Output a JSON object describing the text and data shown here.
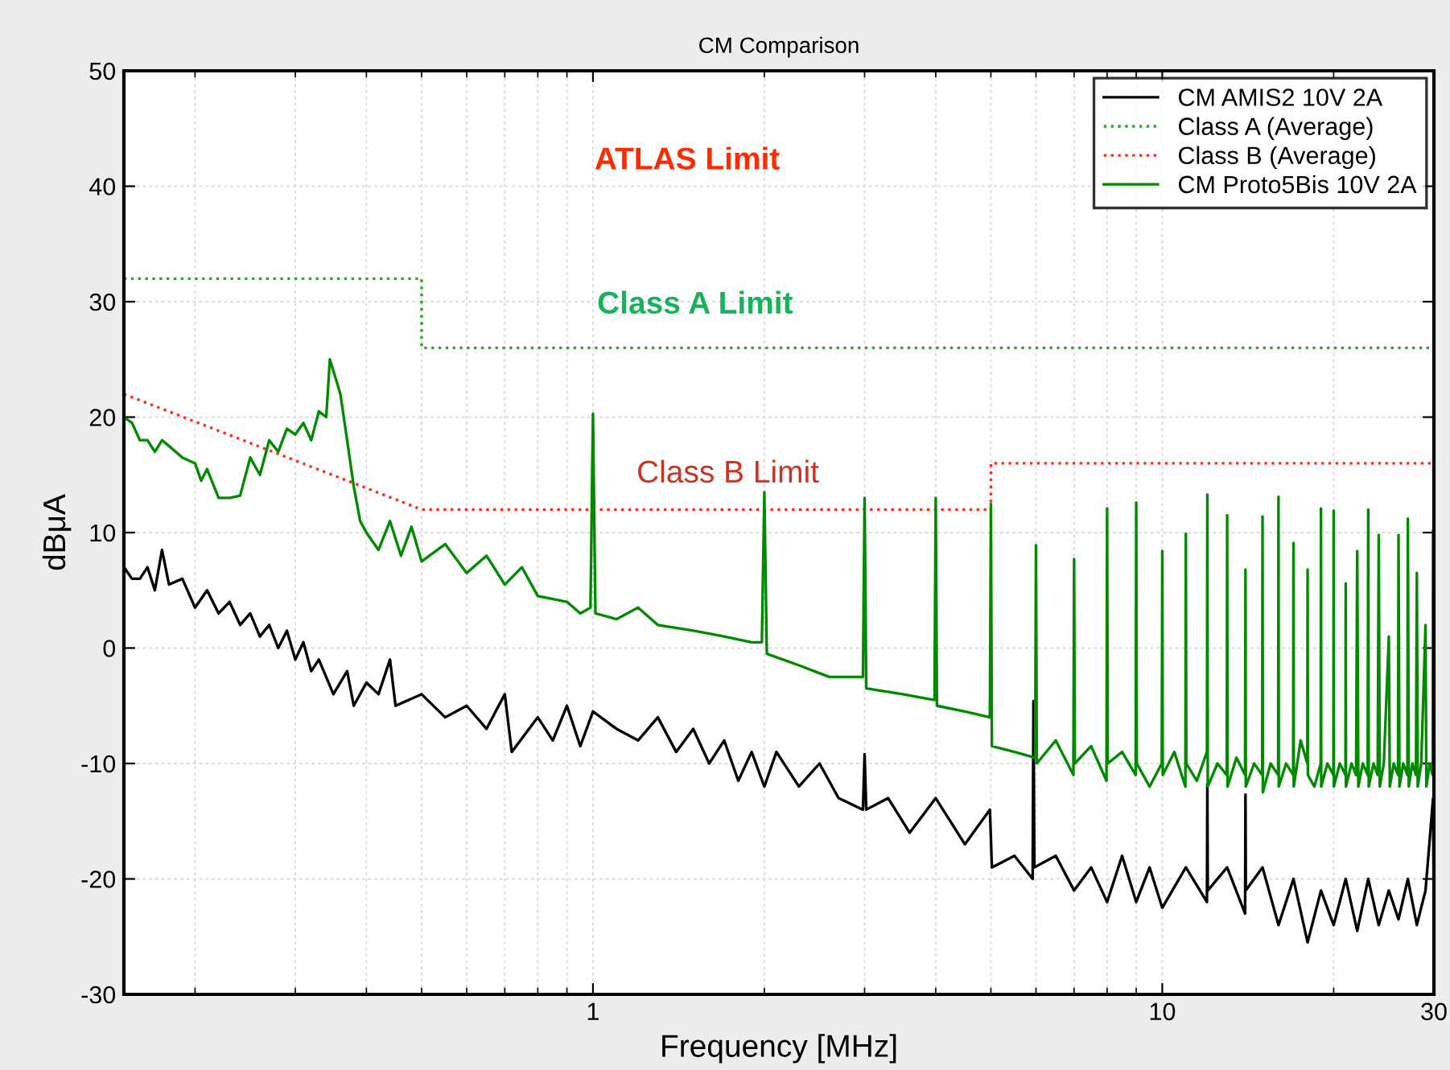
{
  "chart_data": {
    "type": "line",
    "title": "CM Comparison",
    "xlabel": "Frequency [MHz]",
    "ylabel": "dBμA",
    "log": "x",
    "xlim": [
      0.15,
      30
    ],
    "xticks": [
      1,
      10,
      30
    ],
    "ylim": [
      -30,
      50
    ],
    "yticks": [
      -30,
      -20,
      -10,
      0,
      10,
      20,
      30,
      40,
      50
    ],
    "grid": true,
    "legend": "top right",
    "annotations": [
      "ATLAS Limit",
      "Class A Limit",
      "Class B Limit"
    ],
    "series": [
      {
        "name": "CM AMIS2 10V 2A",
        "color": "#000000",
        "line_style": "solid",
        "x": [
          0.15,
          0.155,
          0.16,
          0.165,
          0.17,
          0.175,
          0.18,
          0.19,
          0.2,
          0.21,
          0.22,
          0.23,
          0.24,
          0.25,
          0.26,
          0.27,
          0.28,
          0.29,
          0.3,
          0.31,
          0.32,
          0.33,
          0.35,
          0.37,
          0.38,
          0.4,
          0.42,
          0.44,
          0.45,
          0.5,
          0.55,
          0.6,
          0.65,
          0.7,
          0.72,
          0.8,
          0.85,
          0.9,
          0.95,
          1.0,
          1.1,
          1.2,
          1.3,
          1.4,
          1.5,
          1.6,
          1.7,
          1.8,
          1.9,
          2.0,
          2.1,
          2.3,
          2.5,
          2.7,
          2.98,
          3.0,
          3.02,
          3.3,
          3.6,
          4.0,
          4.5,
          4.98,
          5.02,
          5.5,
          5.92,
          5.94,
          5.96,
          6.5,
          7.0,
          7.5,
          8.0,
          8.5,
          9.0,
          9.5,
          10,
          11,
          11.98,
          12.0,
          12.02,
          13,
          13.98,
          14.0,
          14.02,
          15,
          16,
          17,
          18,
          19,
          20,
          21,
          22,
          23,
          24,
          25,
          26,
          27,
          28,
          29,
          29.9,
          30
        ],
        "values": [
          7,
          6,
          6,
          7,
          5,
          8.5,
          5.5,
          6,
          3.5,
          5,
          3,
          4,
          2,
          3,
          1,
          2,
          0,
          1.5,
          -1,
          0.5,
          -2,
          -1,
          -4,
          -2,
          -5,
          -3,
          -4,
          -1,
          -5,
          -4,
          -6,
          -5,
          -7,
          -4,
          -9,
          -6,
          -8,
          -5,
          -8.5,
          -5.5,
          -7,
          -8,
          -6,
          -9,
          -7,
          -10,
          -8,
          -11.5,
          -9,
          -12,
          -9,
          -12,
          -10,
          -13,
          -14,
          -9.2,
          -14,
          -13,
          -16,
          -13,
          -17,
          -14,
          -19,
          -18,
          -20,
          -4.6,
          -19,
          -18,
          -21,
          -19,
          -22,
          -18,
          -22,
          -19,
          -22.5,
          -19,
          -22,
          -11.8,
          -21,
          -19,
          -23,
          -12.7,
          -21,
          -19,
          -24,
          -20,
          -25.5,
          -21,
          -24,
          -20,
          -24.5,
          -20,
          -24,
          -21,
          -23.5,
          -20,
          -24,
          -21,
          -13,
          -23
        ]
      },
      {
        "name": "Class A (Average)",
        "color": "#22aa22",
        "line_style": "dotted",
        "x": [
          0.15,
          0.5,
          0.5,
          30
        ],
        "values": [
          32,
          32,
          26,
          26
        ]
      },
      {
        "name": "Class B (Average)",
        "color": "#ff2a1a",
        "line_style": "dotted",
        "x": [
          0.15,
          0.5,
          5,
          5,
          30
        ],
        "values": [
          22,
          12,
          12,
          16,
          16
        ]
      },
      {
        "name": "CM Proto5Bis 10V 2A",
        "color": "#008a00",
        "line_style": "solid",
        "x": [
          0.15,
          0.155,
          0.16,
          0.165,
          0.17,
          0.175,
          0.18,
          0.19,
          0.2,
          0.205,
          0.21,
          0.22,
          0.23,
          0.24,
          0.25,
          0.26,
          0.27,
          0.28,
          0.29,
          0.3,
          0.31,
          0.32,
          0.33,
          0.34,
          0.345,
          0.35,
          0.36,
          0.37,
          0.38,
          0.39,
          0.4,
          0.42,
          0.44,
          0.46,
          0.48,
          0.5,
          0.55,
          0.6,
          0.65,
          0.7,
          0.75,
          0.8,
          0.9,
          0.95,
          0.99,
          1.0,
          1.01,
          1.1,
          1.2,
          1.3,
          1.5,
          1.7,
          1.9,
          1.98,
          2.0,
          2.02,
          2.3,
          2.6,
          2.98,
          3.0,
          3.02,
          3.5,
          3.98,
          4.0,
          4.02,
          4.5,
          4.98,
          5.0,
          5.02,
          5.5,
          5.98,
          6.0,
          6.02,
          6.5,
          6.98,
          7.0,
          7.02,
          7.5,
          7.98,
          8.0,
          8.02,
          8.5,
          8.98,
          9.0,
          9.02,
          9.5,
          9.98,
          10.0,
          10.02,
          10.5,
          10.98,
          11.0,
          11.02,
          11.5,
          11.98,
          12.0,
          12.02,
          12.5,
          12.98,
          13.0,
          13.02,
          13.5,
          13.98,
          14.0,
          14.02,
          14.5,
          14.98,
          15.0,
          15.02,
          15.5,
          15.98,
          16.0,
          16.02,
          16.5,
          16.98,
          17.0,
          17.02,
          17.5,
          17.98,
          18.0,
          18.02,
          18.5,
          18.98,
          19.0,
          19.02,
          19.5,
          19.98,
          20.0,
          20.02,
          20.5,
          20.98,
          21.0,
          21.02,
          21.5,
          21.9,
          22.0,
          22.1,
          22.5,
          22.95,
          23.0,
          23.05,
          23.5,
          23.9,
          24.0,
          24.1,
          24.5,
          25.0,
          25.1,
          25.5,
          25.95,
          26.0,
          26.1,
          26.5,
          26.95,
          27.0,
          27.1,
          27.5,
          27.9,
          28.0,
          28.1,
          28.5,
          29.0,
          29.1,
          29.5,
          29.85,
          29.9,
          30
        ],
        "values": [
          20,
          19.5,
          18,
          18,
          17,
          18,
          17.5,
          16.5,
          16,
          14.5,
          15.5,
          13,
          13,
          13.2,
          16.5,
          15,
          18,
          17,
          19,
          18.5,
          19.5,
          18,
          20.5,
          20,
          25,
          24,
          22,
          18,
          14,
          11,
          10,
          8.5,
          11,
          8,
          10.5,
          7.5,
          9,
          6.5,
          8,
          5.5,
          7,
          4.5,
          4,
          3,
          3.5,
          20.3,
          3,
          2.5,
          3.5,
          2,
          1.5,
          1,
          0.5,
          0.5,
          13.5,
          -0.5,
          -1.5,
          -2.5,
          -2.5,
          13,
          -3.5,
          -4,
          -4.5,
          13,
          -5,
          -5.5,
          -6,
          12.5,
          -8.5,
          -9,
          -9.5,
          8.9,
          -10,
          -8,
          -11,
          7.7,
          -10,
          -8.5,
          -11.5,
          12.1,
          -10,
          -9,
          -11,
          12.6,
          -10,
          -12,
          -10,
          8.4,
          -11,
          -9,
          -12,
          9.9,
          -10,
          -11.5,
          -9,
          13.3,
          -12,
          -10,
          -11,
          11.5,
          -12,
          -9.5,
          -11,
          6.8,
          -12,
          -10,
          -11,
          11.4,
          -12.5,
          -10,
          -11,
          13.1,
          -12,
          -10,
          -11,
          9.1,
          -12,
          -8,
          -10,
          6.8,
          -11,
          -12,
          -10,
          12.1,
          -12,
          -10,
          -11,
          11.9,
          -12,
          -10,
          -11,
          5.6,
          -12,
          -10,
          -11,
          8.4,
          -12,
          -10,
          -11,
          12.0,
          -12,
          -10,
          -11,
          9.8,
          -12,
          -10,
          1.0,
          -12,
          -10,
          -11,
          9.8,
          -12,
          -10,
          -11,
          11.2,
          -12,
          -10,
          -11,
          6.5,
          -12,
          -10,
          2.0,
          -12,
          -10,
          -11,
          10.2,
          -10
        ]
      }
    ]
  }
}
